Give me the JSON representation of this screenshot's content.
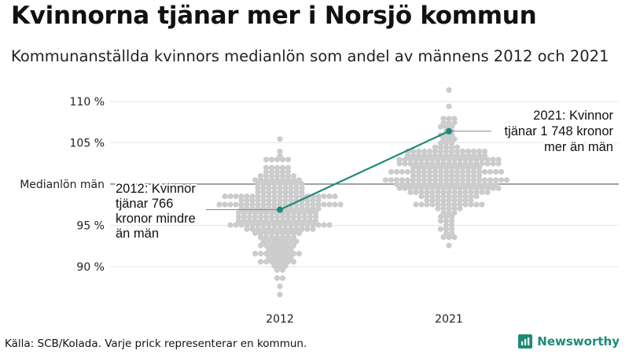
{
  "title": "Kvinnorna tjänar mer i Norsjö kommun",
  "subtitle": "Kommunanställda kvinnors medianlön som andel av männens 2012 och 2021",
  "source": "Källa: SCB/Kolada. Varje prick representerar en kommun.",
  "brand": {
    "name": "Newsworthy",
    "color": "#1d8a78"
  },
  "colors": {
    "dots": "#cccccc",
    "highlight": "#1d8a78",
    "reference_line": "#444444",
    "grid": "#e6e6e6"
  },
  "chart_data": {
    "type": "beeswarm",
    "title": "Kvinnorna tjänar mer i Norsjö kommun",
    "categories": [
      "2012",
      "2021"
    ],
    "ylim": [
      86,
      112
    ],
    "y_ticks": [
      {
        "value": 110,
        "label": "110 %"
      },
      {
        "value": 105,
        "label": "105 %"
      },
      {
        "value": 100,
        "label": "Medianlön män"
      },
      {
        "value": 95,
        "label": "95 %"
      },
      {
        "value": 90,
        "label": "90 %"
      }
    ],
    "reference_line": {
      "value": 100,
      "label": "Medianlön män"
    },
    "highlight": {
      "name": "Norsjö kommun",
      "values": [
        96.9,
        106.4
      ],
      "annotations": [
        {
          "category": "2012",
          "lines": [
            "2012: Kvinnor",
            "tjänar 766",
            "kronor mindre",
            "än män"
          ]
        },
        {
          "category": "2021",
          "lines": [
            "2021: Kvinnor",
            "tjänar 1 748 kronor",
            "mer än män"
          ]
        }
      ]
    },
    "distributions": [
      {
        "category": "2012",
        "min": 86.5,
        "max": 105.3,
        "median": 96.2,
        "spread": 3.0,
        "count": 290
      },
      {
        "category": "2021",
        "min": 92.5,
        "max": 111.5,
        "median": 101.0,
        "spread": 2.9,
        "count": 290
      }
    ]
  }
}
